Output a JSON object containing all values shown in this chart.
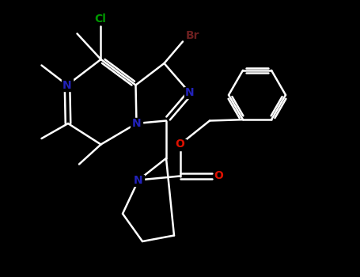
{
  "background_color": "#000000",
  "figsize": [
    4.55,
    3.5
  ],
  "dpi": 100,
  "xlim": [
    0,
    9.1
  ],
  "ylim": [
    0,
    7.0
  ],
  "N_color": "#2222bb",
  "O_color": "#dd1100",
  "Cl_color": "#009900",
  "Br_color": "#6b1f1f",
  "bond_color": "#ffffff",
  "bond_lw": 1.8,
  "font_size": 10
}
